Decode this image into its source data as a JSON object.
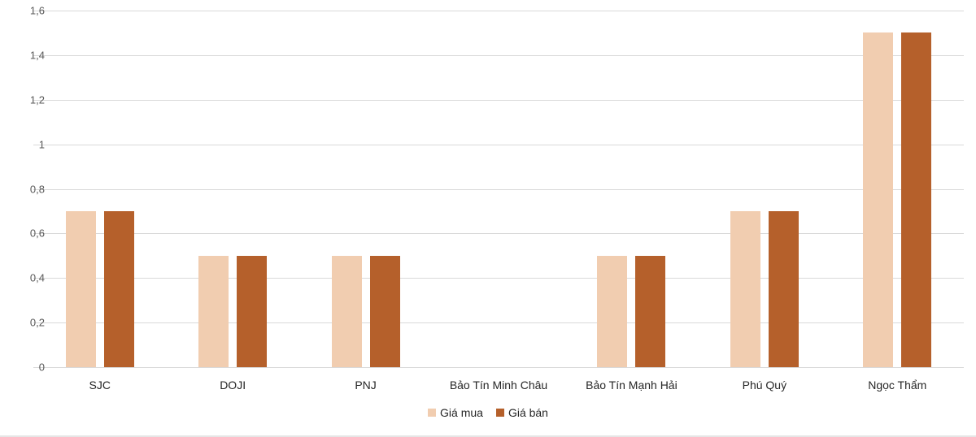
{
  "chart_data": {
    "type": "bar",
    "title": "",
    "xlabel": "",
    "ylabel": "",
    "categories": [
      "SJC",
      "DOJI",
      "PNJ",
      "Bảo Tín Minh Châu",
      "Bảo Tín Mạnh Hải",
      "Phú Quý",
      "Ngọc Thẩm"
    ],
    "series": [
      {
        "name": "Giá mua",
        "color": "#F1CDB0",
        "values": [
          0.7,
          0.5,
          0.5,
          0,
          0.5,
          0.7,
          1.5
        ]
      },
      {
        "name": "Giá bán",
        "color": "#B5602B",
        "values": [
          0.7,
          0.5,
          0.5,
          0,
          0.5,
          0.7,
          1.5
        ]
      }
    ],
    "ylim": [
      0,
      1.6
    ],
    "yticks": [
      0,
      0.2,
      0.4,
      0.6,
      0.8,
      1,
      1.2,
      1.4,
      1.6
    ],
    "ytick_labels": [
      "0",
      "0,2",
      "0,4",
      "0,6",
      "0,8",
      "1",
      "1,2",
      "1,4",
      "1,6"
    ],
    "grid": true,
    "legend_position": "bottom"
  },
  "legend": {
    "items": [
      {
        "label": "Giá mua",
        "color": "#F1CDB0"
      },
      {
        "label": "Giá bán",
        "color": "#B5602B"
      }
    ]
  }
}
